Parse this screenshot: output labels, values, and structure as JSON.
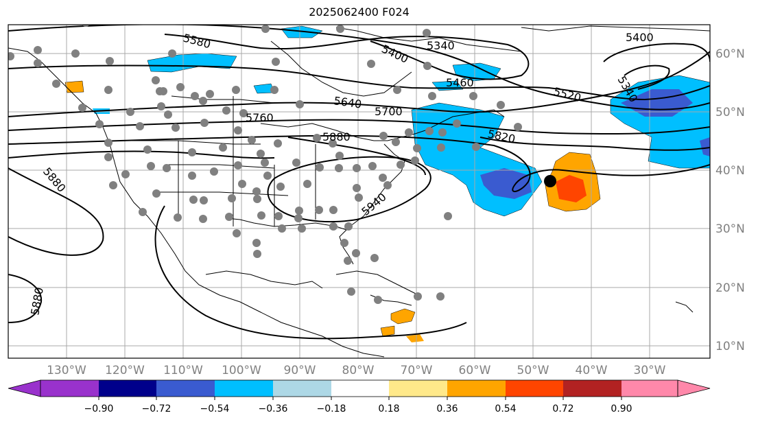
{
  "map": {
    "title": "2025062400 F024",
    "longitude_labels": [
      "130°W",
      "120°W",
      "110°W",
      "100°W",
      "90°W",
      "80°W",
      "70°W",
      "60°W",
      "50°W",
      "40°W",
      "30°W"
    ],
    "latitude_labels": [
      "60°N",
      "50°N",
      "40°N",
      "30°N",
      "20°N",
      "10°N"
    ],
    "contour_labels": [
      "5580",
      "5400",
      "5340",
      "5460",
      "5520",
      "5640",
      "5700",
      "5760",
      "5880",
      "5820",
      "5940",
      "5400",
      "5340",
      "5880",
      "5880"
    ],
    "land_color": "#ffffff",
    "coastline_color": "#000000",
    "gridline_color": "#a9a9a9"
  },
  "colorbar": {
    "tick_labels": [
      "−0.90",
      "−0.72",
      "−0.54",
      "−0.36",
      "−0.18",
      "0.18",
      "0.36",
      "0.54",
      "0.72",
      "0.90"
    ],
    "colors": [
      "#9932cc",
      "#00008b",
      "#3a5bd0",
      "#00bfff",
      "#add8e6",
      "#ffffff",
      "#ffe98a",
      "#ffa500",
      "#ff4500",
      "#b22222",
      "#ff88aa"
    ]
  }
}
